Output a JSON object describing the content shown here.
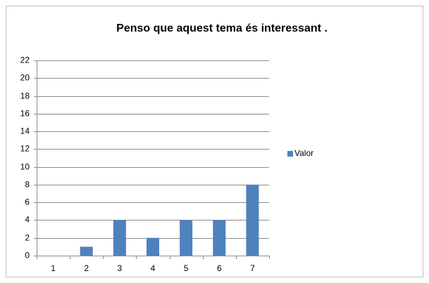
{
  "chart_data": {
    "type": "bar",
    "title": "Penso que aquest tema és interessant .",
    "categories": [
      "1",
      "2",
      "3",
      "4",
      "5",
      "6",
      "7"
    ],
    "series": [
      {
        "name": "Valor",
        "color": "#4f81bd",
        "values": [
          0,
          1,
          4,
          2,
          4,
          4,
          8
        ]
      }
    ],
    "ylim": [
      0,
      22
    ],
    "yticks": [
      0,
      2,
      4,
      6,
      8,
      10,
      12,
      14,
      16,
      18,
      20,
      22
    ],
    "grid": true,
    "legend": "right"
  }
}
